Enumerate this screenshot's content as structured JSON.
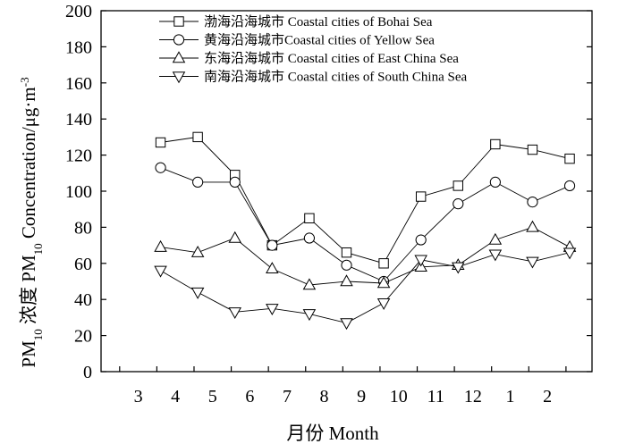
{
  "chart_data": {
    "type": "line",
    "title": "",
    "xlabel": "月份 Month",
    "ylabel_parts": {
      "pm": "PM",
      "sub1": "10",
      "nongdu": " 浓度 PM",
      "sub2": "10",
      "concentration": " Concentration/μg·m",
      "sup": "-3"
    },
    "ylim": [
      0,
      200
    ],
    "yticks": [
      0,
      20,
      40,
      60,
      80,
      100,
      120,
      140,
      160,
      180,
      200
    ],
    "x_tick_labels": [
      "3",
      "4",
      "5",
      "6",
      "7",
      "8",
      "9",
      "10",
      "11",
      "12",
      "1",
      "2"
    ],
    "legend_position": "top",
    "grid": false,
    "series": [
      {
        "name": "渤海沿海城市 Coastal cities of Bohai Sea",
        "marker": "square",
        "points": [
          {
            "x": 3.6,
            "y": 127
          },
          {
            "x": 4.6,
            "y": 130
          },
          {
            "x": 5.6,
            "y": 109
          },
          {
            "x": 6.6,
            "y": 70
          },
          {
            "x": 7.6,
            "y": 85
          },
          {
            "x": 8.6,
            "y": 66
          },
          {
            "x": 9.6,
            "y": 60
          },
          {
            "x": 10.6,
            "y": 97
          },
          {
            "x": 11.6,
            "y": 103
          },
          {
            "x": 12.6,
            "y": 126
          },
          {
            "x": 13.6,
            "y": 123
          },
          {
            "x": 14.6,
            "y": 118
          }
        ]
      },
      {
        "name": "黄海沿海城市Coastal cities of Yellow Sea",
        "marker": "circle",
        "points": [
          {
            "x": 3.6,
            "y": 113
          },
          {
            "x": 4.6,
            "y": 105
          },
          {
            "x": 5.6,
            "y": 105
          },
          {
            "x": 6.6,
            "y": 70
          },
          {
            "x": 7.6,
            "y": 74
          },
          {
            "x": 8.6,
            "y": 59
          },
          {
            "x": 9.6,
            "y": 50
          },
          {
            "x": 10.6,
            "y": 73
          },
          {
            "x": 11.6,
            "y": 93
          },
          {
            "x": 12.6,
            "y": 105
          },
          {
            "x": 13.6,
            "y": 94
          },
          {
            "x": 14.6,
            "y": 103
          }
        ]
      },
      {
        "name": "东海沿海城市 Coastal cities of East China Sea",
        "marker": "triangle-up",
        "points": [
          {
            "x": 3.6,
            "y": 69
          },
          {
            "x": 4.6,
            "y": 66
          },
          {
            "x": 5.6,
            "y": 74
          },
          {
            "x": 6.6,
            "y": 57
          },
          {
            "x": 7.6,
            "y": 48
          },
          {
            "x": 8.6,
            "y": 50
          },
          {
            "x": 9.6,
            "y": 49
          },
          {
            "x": 10.6,
            "y": 58
          },
          {
            "x": 11.6,
            "y": 59
          },
          {
            "x": 12.6,
            "y": 73
          },
          {
            "x": 13.6,
            "y": 80
          },
          {
            "x": 14.6,
            "y": 69
          }
        ]
      },
      {
        "name": "南海沿海城市 Coastal cities of South China Sea",
        "marker": "triangle-down",
        "points": [
          {
            "x": 3.6,
            "y": 56
          },
          {
            "x": 4.6,
            "y": 44
          },
          {
            "x": 5.6,
            "y": 33
          },
          {
            "x": 6.6,
            "y": 35
          },
          {
            "x": 7.6,
            "y": 32
          },
          {
            "x": 8.6,
            "y": 27
          },
          {
            "x": 9.6,
            "y": 38
          },
          {
            "x": 10.6,
            "y": 62
          },
          {
            "x": 11.6,
            "y": 58
          },
          {
            "x": 12.6,
            "y": 65
          },
          {
            "x": 13.6,
            "y": 61
          },
          {
            "x": 14.6,
            "y": 66
          }
        ]
      }
    ]
  }
}
